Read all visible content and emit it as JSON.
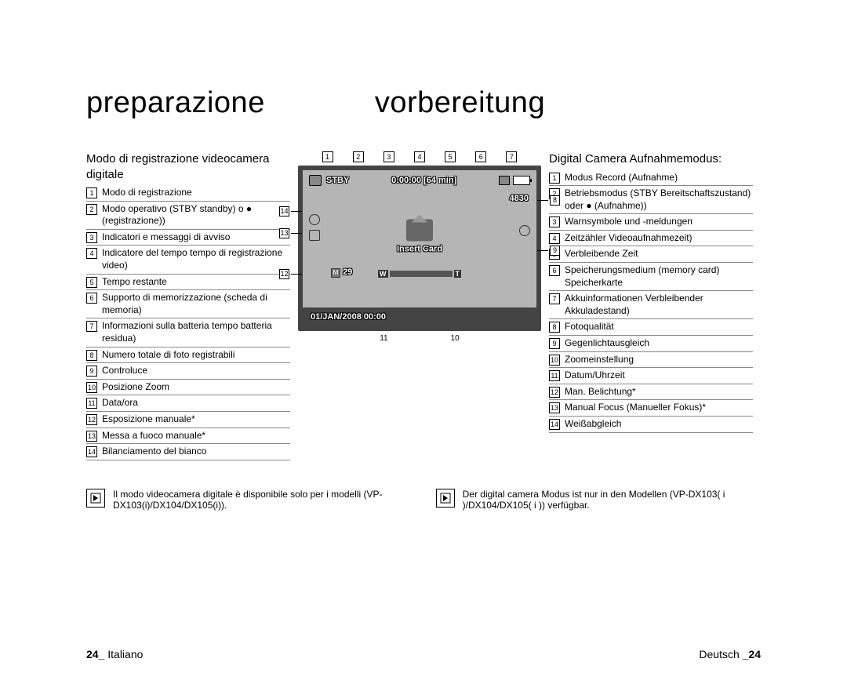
{
  "titles": {
    "left": "preparazione",
    "right": "vorbereitung"
  },
  "left": {
    "subhead": "Modo di registrazione videocamera digitale",
    "items": [
      "Modo di registrazione",
      "Modo operativo (STBY standby) o ● (registrazione))",
      "Indicatori e messaggi di avviso",
      "Indicatore del tempo tempo di registrazione video)",
      "Tempo restante",
      "Supporto di memorizzazione (scheda di memoria)",
      "Informazioni sulla batteria tempo batteria residua)",
      "Numero totale di foto registrabili",
      "Controluce",
      "Posizione Zoom",
      "Data/ora",
      "Esposizione manuale*",
      "Messa a fuoco manuale*",
      "Bilanciamento del bianco"
    ]
  },
  "right": {
    "subhead": "Digital Camera Aufnahmemodus:",
    "items": [
      "Modus Record (Aufnahme)",
      "Betriebsmodus (STBY Bereitschaftszustand) oder ● (Aufnahme))",
      "Warnsymbole und -meldungen",
      "Zeitzähler Videoaufnahmezeit)",
      "Verbleibende Zeit",
      "Speicherungsmedium (memory card) Speicherkarte",
      "Akkuinformationen Verbleibender Akkuladestand)",
      "Fotoqualität",
      "Gegenlichtausgleich",
      "Zoomeinstellung",
      "Datum/Uhrzeit",
      "Man. Belichtung*",
      "Manual Focus (Manueller Fokus)*",
      "Weißabgleich"
    ]
  },
  "lcd": {
    "stby": "STBY",
    "time": "0:00:00 [64 min]",
    "photo_count": "4830",
    "insert": "Insert Card",
    "num": "29",
    "zoom_w": "W",
    "zoom_t": "T",
    "m_icon": "M",
    "date": "01/JAN/2008 00:00"
  },
  "callouts_top": [
    "1",
    "2",
    "3",
    "4",
    "5",
    "6",
    "7"
  ],
  "callouts_bottom": [
    "11",
    "10"
  ],
  "callouts_left": [
    "14",
    "13",
    "12"
  ],
  "callouts_right": [
    "8",
    "9"
  ],
  "notes": {
    "left": "Il modo videocamera digitale è disponibile solo per i modelli (VP-DX103(i)/DX104/DX105(i)).",
    "right": "Der digital camera Modus ist nur in den Modellen (VP-DX103( i )/DX104/DX105( i )) verfügbar."
  },
  "footer": {
    "left_num": "24_",
    "left_lang": "Italiano",
    "right_lang": "Deutsch",
    "right_num": "_24"
  }
}
